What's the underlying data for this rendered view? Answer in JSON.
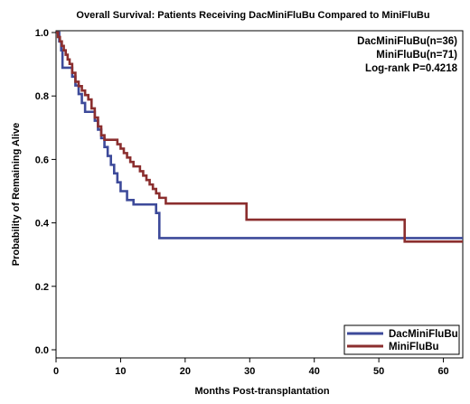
{
  "chart_data": {
    "type": "line",
    "title": "Overall Survival: Patients Receiving DacMiniFluBu Compared to MiniFluBu",
    "xlabel": "Months Post-transplantation",
    "ylabel": "Probability of Remaining Alive",
    "xlim": [
      0,
      63
    ],
    "ylim": [
      0,
      1.0
    ],
    "xticks": [
      0,
      10,
      20,
      30,
      40,
      50,
      60
    ],
    "xtick_labels": [
      "0",
      "10",
      "20",
      "30",
      "40",
      "50",
      "60"
    ],
    "yticks": [
      0.0,
      0.2,
      0.4,
      0.6,
      0.8,
      1.0
    ],
    "ytick_labels": [
      "0.0",
      "0.2",
      "0.4",
      "0.6",
      "0.8",
      "1.0"
    ],
    "grid": false,
    "legend_position": "bottom-right",
    "annotations": [
      "DacMiniFluBu(n=36)",
      "MiniFluBu(n=71)",
      "Log-rank P=0.4218"
    ],
    "series": [
      {
        "name": "DacMiniFluBu",
        "color": "#3d4a9a",
        "step": true,
        "points": [
          [
            0,
            1.0
          ],
          [
            0.5,
            0.972
          ],
          [
            0.8,
            0.944
          ],
          [
            1.0,
            0.889
          ],
          [
            2.5,
            0.861
          ],
          [
            3.0,
            0.833
          ],
          [
            3.5,
            0.806
          ],
          [
            4.0,
            0.778
          ],
          [
            4.5,
            0.75
          ],
          [
            6.0,
            0.722
          ],
          [
            6.5,
            0.694
          ],
          [
            7.0,
            0.667
          ],
          [
            7.5,
            0.639
          ],
          [
            8.0,
            0.611
          ],
          [
            8.5,
            0.583
          ],
          [
            9.0,
            0.556
          ],
          [
            9.5,
            0.528
          ],
          [
            10.0,
            0.5
          ],
          [
            11.0,
            0.472
          ],
          [
            12.0,
            0.458
          ],
          [
            15.5,
            0.431
          ],
          [
            16.0,
            0.352
          ],
          [
            63,
            0.352
          ]
        ]
      },
      {
        "name": "MiniFluBu",
        "color": "#8b2e2e",
        "step": true,
        "points": [
          [
            0,
            1.0
          ],
          [
            0.3,
            0.986
          ],
          [
            0.6,
            0.972
          ],
          [
            0.9,
            0.958
          ],
          [
            1.2,
            0.944
          ],
          [
            1.5,
            0.93
          ],
          [
            1.8,
            0.915
          ],
          [
            2.1,
            0.901
          ],
          [
            2.5,
            0.873
          ],
          [
            3.0,
            0.845
          ],
          [
            3.5,
            0.831
          ],
          [
            4.0,
            0.817
          ],
          [
            4.5,
            0.803
          ],
          [
            5.0,
            0.789
          ],
          [
            5.5,
            0.761
          ],
          [
            6.0,
            0.732
          ],
          [
            6.5,
            0.704
          ],
          [
            7.0,
            0.676
          ],
          [
            7.5,
            0.662
          ],
          [
            9.5,
            0.648
          ],
          [
            10.0,
            0.634
          ],
          [
            10.5,
            0.62
          ],
          [
            11.0,
            0.606
          ],
          [
            11.5,
            0.592
          ],
          [
            12.0,
            0.578
          ],
          [
            13.0,
            0.563
          ],
          [
            13.5,
            0.549
          ],
          [
            14.0,
            0.535
          ],
          [
            14.5,
            0.521
          ],
          [
            15.0,
            0.507
          ],
          [
            15.5,
            0.493
          ],
          [
            16.0,
            0.479
          ],
          [
            17.0,
            0.461
          ],
          [
            29.5,
            0.41
          ],
          [
            54.0,
            0.341
          ],
          [
            63,
            0.341
          ]
        ]
      }
    ]
  }
}
